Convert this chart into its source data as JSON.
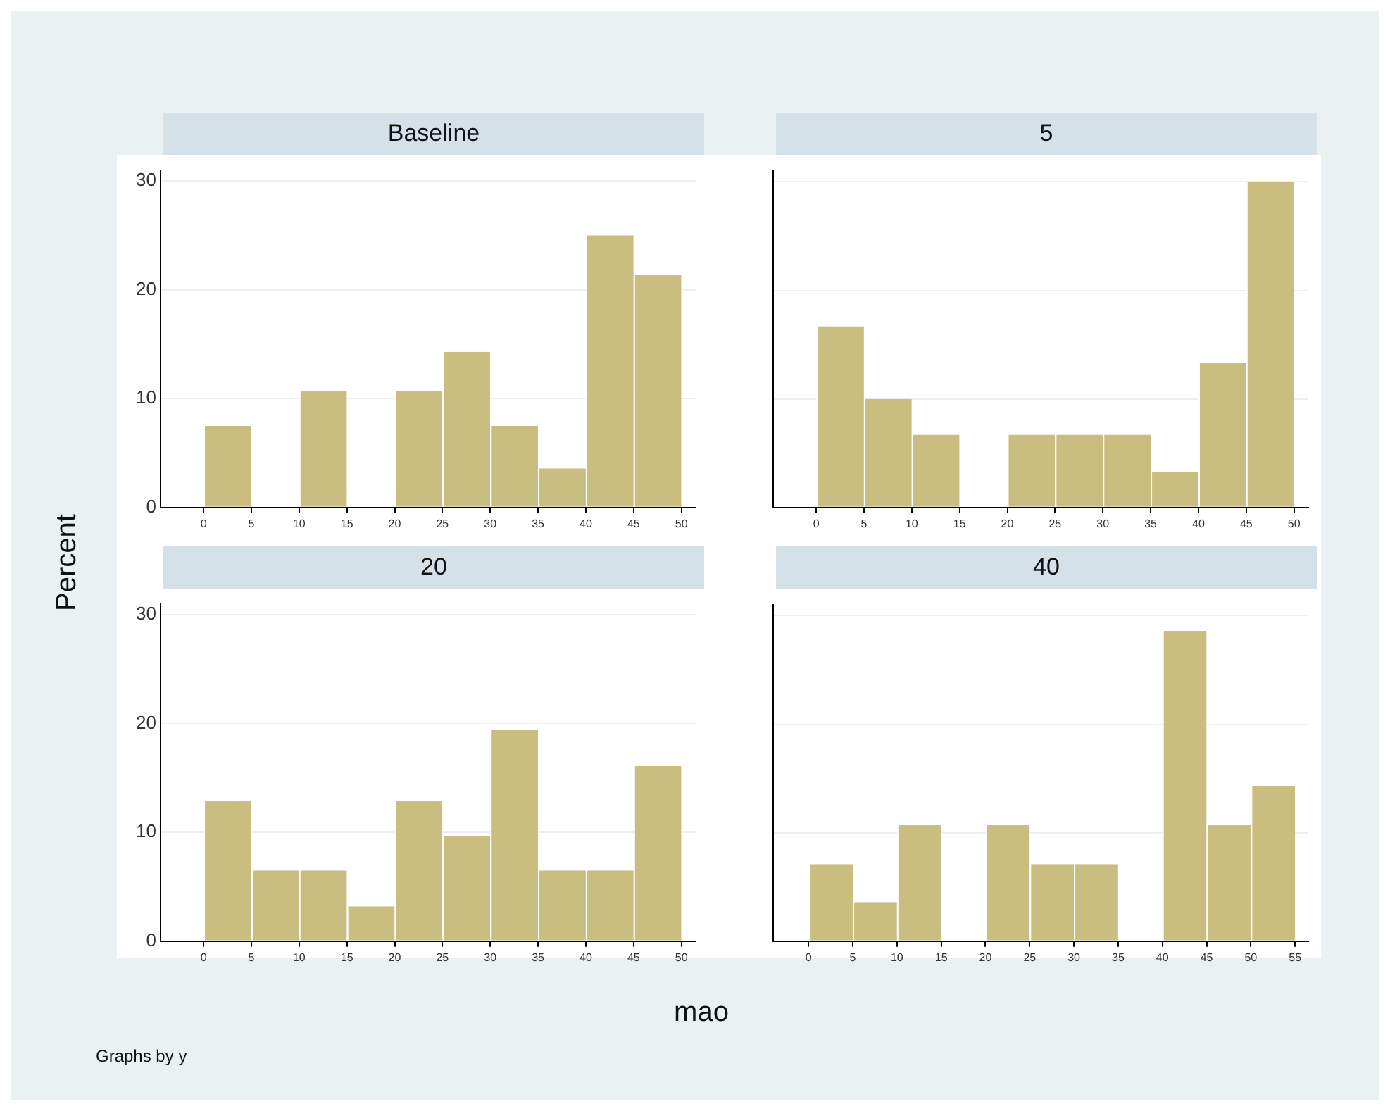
{
  "chart_data": [
    {
      "type": "histogram",
      "title": "Baseline",
      "ylabel": "Percent",
      "bins": [
        0,
        5,
        10,
        15,
        20,
        25,
        30,
        35,
        40,
        45,
        50
      ],
      "values": [
        7.5,
        0,
        10.7,
        0,
        10.7,
        14.3,
        7.5,
        3.6,
        25,
        21.4
      ],
      "color": "#c9bd80",
      "xlim": [
        -4.5,
        51.5
      ],
      "xticks": [
        0,
        5,
        10,
        15,
        20,
        25,
        30,
        35,
        40,
        45,
        50
      ],
      "ylim": [
        0,
        31
      ],
      "yticks": [
        0,
        10,
        20,
        30
      ],
      "grid": "y"
    },
    {
      "type": "histogram",
      "title": "5",
      "bins": [
        0,
        5,
        10,
        15,
        20,
        25,
        30,
        35,
        40,
        45,
        50
      ],
      "values": [
        16.7,
        10,
        6.7,
        0,
        6.7,
        6.7,
        6.7,
        3.3,
        13.3,
        30
      ],
      "color": "#c9bd80",
      "xlim": [
        -4.5,
        51.5
      ],
      "xticks": [
        0,
        5,
        10,
        15,
        20,
        25,
        30,
        35,
        40,
        45,
        50
      ],
      "ylim": [
        0,
        31
      ],
      "yticks": [
        0,
        10,
        20,
        30
      ],
      "grid": "y",
      "tick_labels": "x"
    },
    {
      "type": "histogram",
      "title": "20",
      "bins": [
        0,
        5,
        10,
        15,
        20,
        25,
        30,
        35,
        40,
        45,
        50
      ],
      "values": [
        12.9,
        6.5,
        6.5,
        3.2,
        12.9,
        9.7,
        19.4,
        6.5,
        6.5,
        16.1
      ],
      "color": "#c9bd80",
      "xlim": [
        -4.5,
        51.5
      ],
      "xticks": [
        0,
        5,
        10,
        15,
        20,
        25,
        30,
        35,
        40,
        45,
        50
      ],
      "ylim": [
        0,
        31
      ],
      "yticks": [
        0,
        10,
        20,
        30
      ],
      "grid": "y",
      "annotations": [
        "Graphs by y"
      ]
    },
    {
      "type": "histogram",
      "title": "40",
      "xlabel": "mao",
      "bins": [
        0,
        5,
        10,
        15,
        20,
        25,
        30,
        35,
        40,
        45,
        50,
        55
      ],
      "values": [
        7.1,
        3.6,
        10.7,
        0,
        10.7,
        7.1,
        7.1,
        0,
        28.6,
        10.7,
        14.3
      ],
      "color": "#c9bd80",
      "xlim": [
        -4,
        56.5
      ],
      "xticks": [
        0,
        5,
        10,
        15,
        20,
        25,
        30,
        35,
        40,
        45,
        50,
        55
      ],
      "ylim": [
        0,
        31
      ],
      "yticks": [
        0,
        10,
        20,
        30
      ],
      "grid": "y",
      "tick_labels": "x"
    }
  ]
}
